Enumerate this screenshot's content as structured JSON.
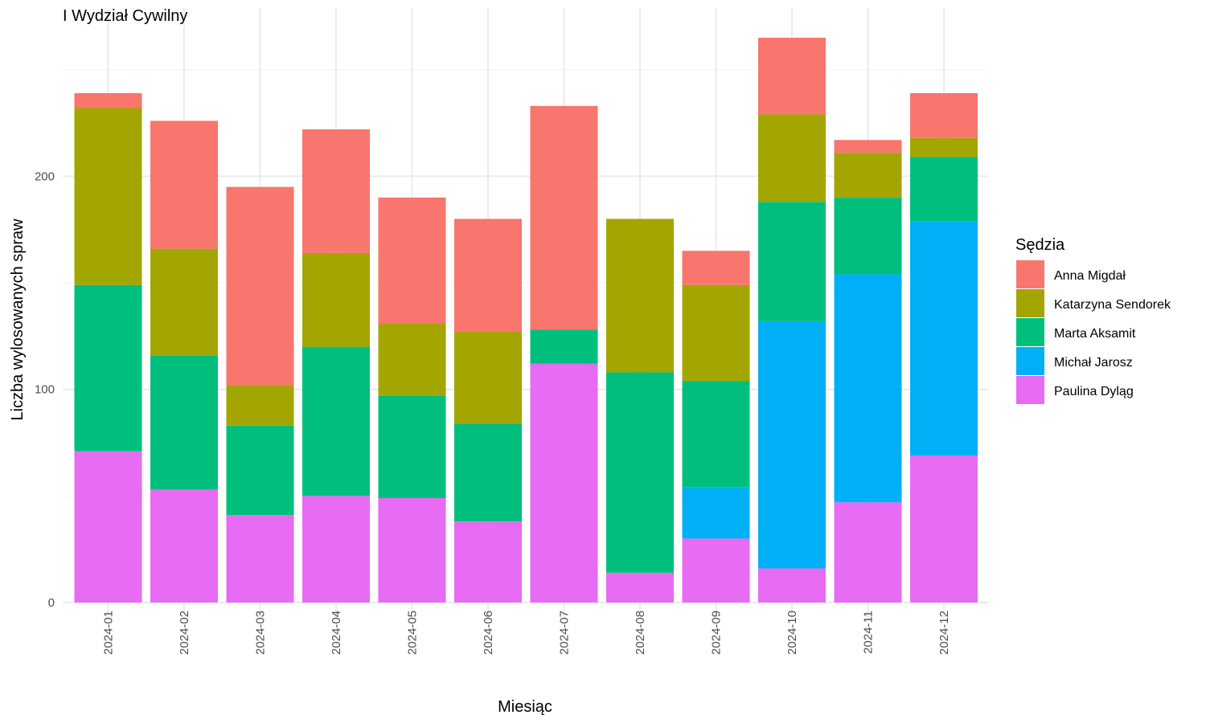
{
  "chart_data": {
    "type": "bar",
    "stacked": true,
    "title": "I Wydział Cywilny",
    "xlabel": "Miesiąc",
    "ylabel": "Liczba wylosowanych spraw",
    "ylim": [
      0,
      266
    ],
    "yticks": [
      0,
      100,
      200
    ],
    "grid": true,
    "legend_title": "Sędzia",
    "legend_position": "right",
    "categories": [
      "2024-01",
      "2024-02",
      "2024-03",
      "2024-04",
      "2024-05",
      "2024-06",
      "2024-07",
      "2024-08",
      "2024-09",
      "2024-10",
      "2024-11",
      "2024-12"
    ],
    "series": [
      {
        "name": "Paulina Dyląg",
        "color": "#E76BF3",
        "values": [
          71,
          53,
          41,
          50,
          49,
          38,
          112,
          14,
          30,
          16,
          47,
          69
        ]
      },
      {
        "name": "Michał Jarosz",
        "color": "#00B0F6",
        "values": [
          0,
          0,
          0,
          0,
          0,
          0,
          0,
          0,
          24,
          116,
          107,
          110
        ]
      },
      {
        "name": "Marta Aksamit",
        "color": "#00BF7D",
        "values": [
          78,
          63,
          42,
          70,
          48,
          46,
          16,
          94,
          50,
          56,
          36,
          30
        ]
      },
      {
        "name": "Katarzyna Sendorek",
        "color": "#A3A500",
        "values": [
          83,
          50,
          19,
          44,
          34,
          43,
          0,
          72,
          45,
          41,
          21,
          9
        ]
      },
      {
        "name": "Anna Migdał",
        "color": "#F8766D",
        "values": [
          7,
          60,
          93,
          58,
          59,
          53,
          105,
          0,
          16,
          36,
          6,
          21
        ]
      }
    ],
    "legend_order": [
      "Anna Migdał",
      "Katarzyna Sendorek",
      "Marta Aksamit",
      "Michał Jarosz",
      "Paulina Dyląg"
    ]
  }
}
